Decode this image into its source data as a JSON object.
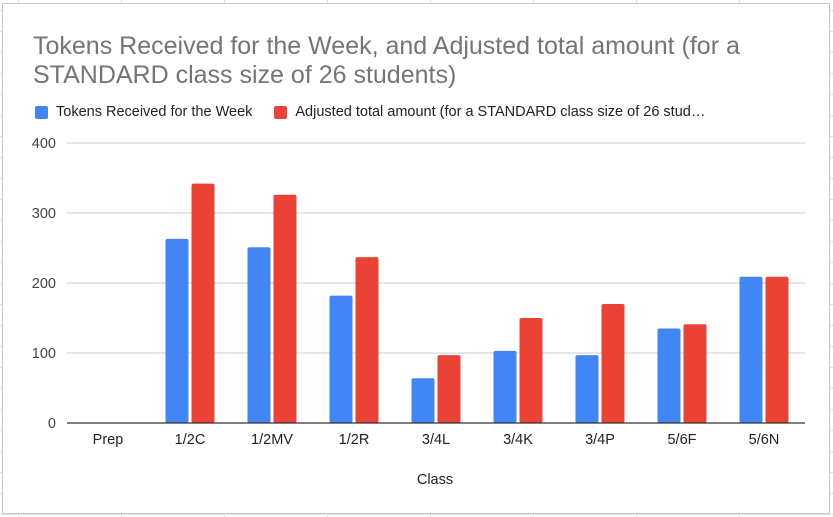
{
  "chart_data": {
    "type": "bar",
    "title": "Tokens Received for the Week,  and Adjusted total amount (for a STANDARD class size of 26 students)",
    "xlabel": "Class",
    "ylabel": "",
    "categories": [
      "Prep",
      "1/2C",
      "1/2MV",
      "1/2R",
      "3/4L",
      "3/4K",
      "3/4P",
      "5/6F",
      "5/6N"
    ],
    "series": [
      {
        "name": "Tokens Received for the Week",
        "color": "#4285f4",
        "values": [
          0,
          263,
          251,
          182,
          64,
          103,
          97,
          135,
          209
        ]
      },
      {
        "name": "Adjusted total amount (for a STANDARD class size of 26 stud…",
        "color": "#ea4335",
        "values": [
          0,
          342,
          326,
          237,
          97,
          150,
          170,
          141,
          209
        ]
      }
    ],
    "yticks": [
      "0",
      "100",
      "200",
      "300",
      "400"
    ],
    "ylim": [
      0,
      400
    ],
    "grid": true,
    "legend": "top"
  }
}
